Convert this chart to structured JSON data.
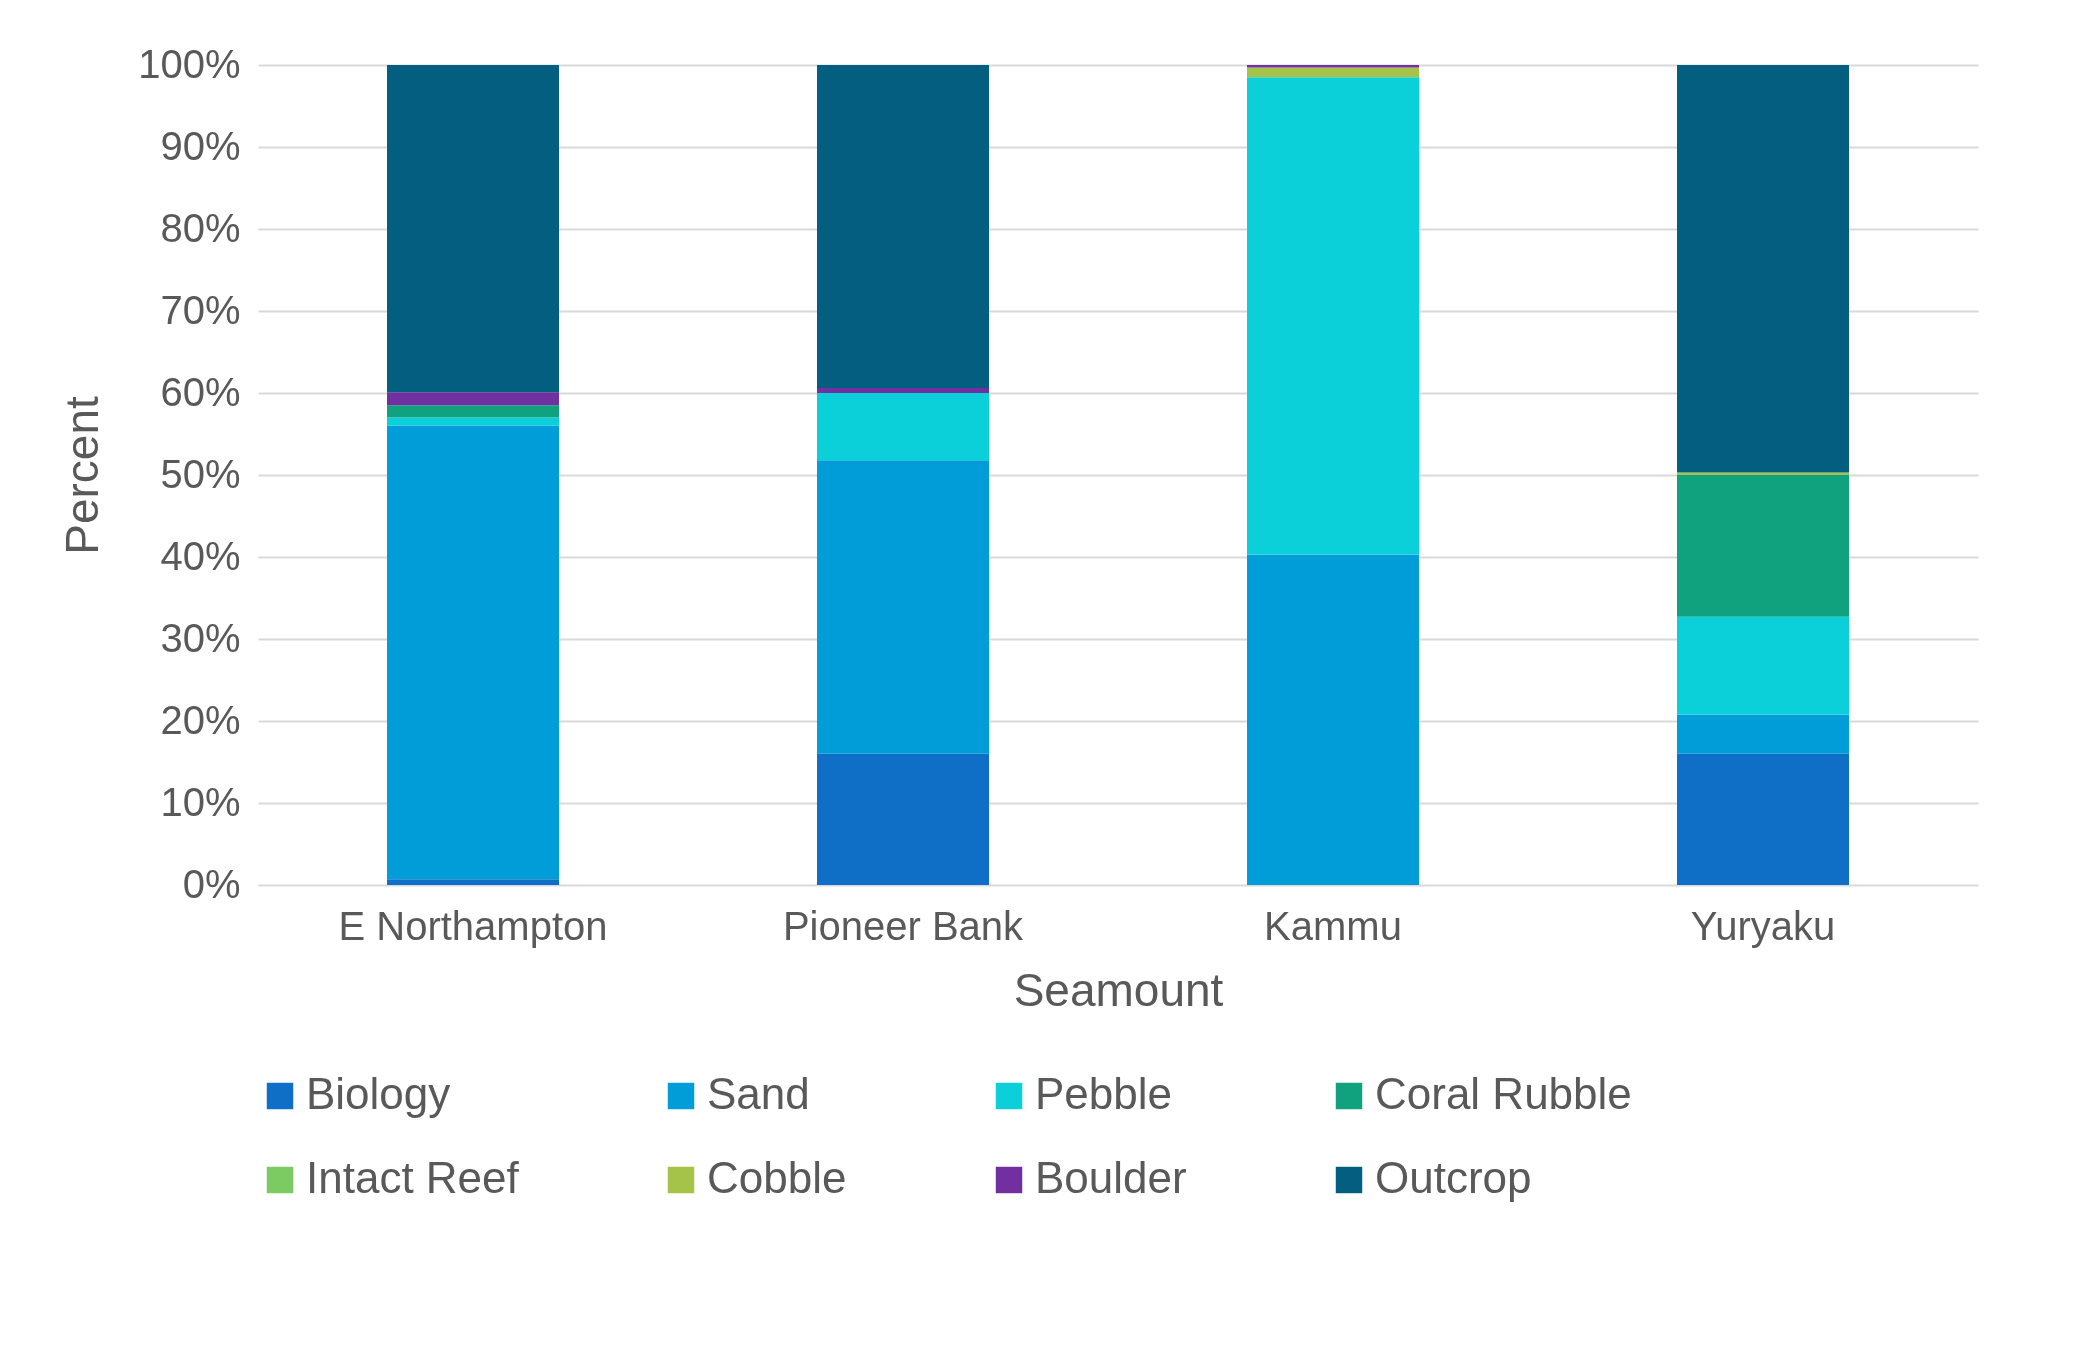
{
  "chart_data": {
    "type": "bar",
    "stacked": true,
    "xlabel": "Seamount",
    "ylabel": "Percent",
    "categories": [
      "E Northampton",
      "Pioneer Bank",
      "Kammu",
      "Yuryaku"
    ],
    "series": [
      {
        "name": "Biology",
        "color": "#0f6fc6",
        "values": [
          0.7,
          16.0,
          0,
          16.0
        ]
      },
      {
        "name": "Sand",
        "color": "#009dd9",
        "values": [
          55.3,
          35.8,
          40.3,
          4.8
        ]
      },
      {
        "name": "Pebble",
        "color": "#0bd0d9",
        "values": [
          1.0,
          8.2,
          58.2,
          11.9
        ]
      },
      {
        "name": "Coral Rubble",
        "color": "#10a27f",
        "values": [
          1.5,
          0,
          0,
          17.3
        ]
      },
      {
        "name": "Intact Reef",
        "color": "#7cca62",
        "values": [
          0,
          0,
          0,
          0
        ]
      },
      {
        "name": "Cobble",
        "color": "#a5c249",
        "values": [
          0,
          0,
          1.2,
          0.3
        ]
      },
      {
        "name": "Boulder",
        "color": "#7030a0",
        "values": [
          1.6,
          0.6,
          0.3,
          0
        ]
      },
      {
        "name": "Outcrop",
        "color": "#045e80",
        "values": [
          39.9,
          39.4,
          0,
          49.7
        ]
      }
    ],
    "ylim": [
      0,
      100
    ],
    "yticks": [
      {
        "value": 0,
        "label": "0%"
      },
      {
        "value": 10,
        "label": "10%"
      },
      {
        "value": 20,
        "label": "20%"
      },
      {
        "value": 30,
        "label": "30%"
      },
      {
        "value": 40,
        "label": "40%"
      },
      {
        "value": 50,
        "label": "50%"
      },
      {
        "value": 60,
        "label": "60%"
      },
      {
        "value": 70,
        "label": "70%"
      },
      {
        "value": 80,
        "label": "80%"
      },
      {
        "value": 90,
        "label": "90%"
      },
      {
        "value": 100,
        "label": "100%"
      }
    ],
    "grid": "y",
    "legend": "bottom"
  }
}
